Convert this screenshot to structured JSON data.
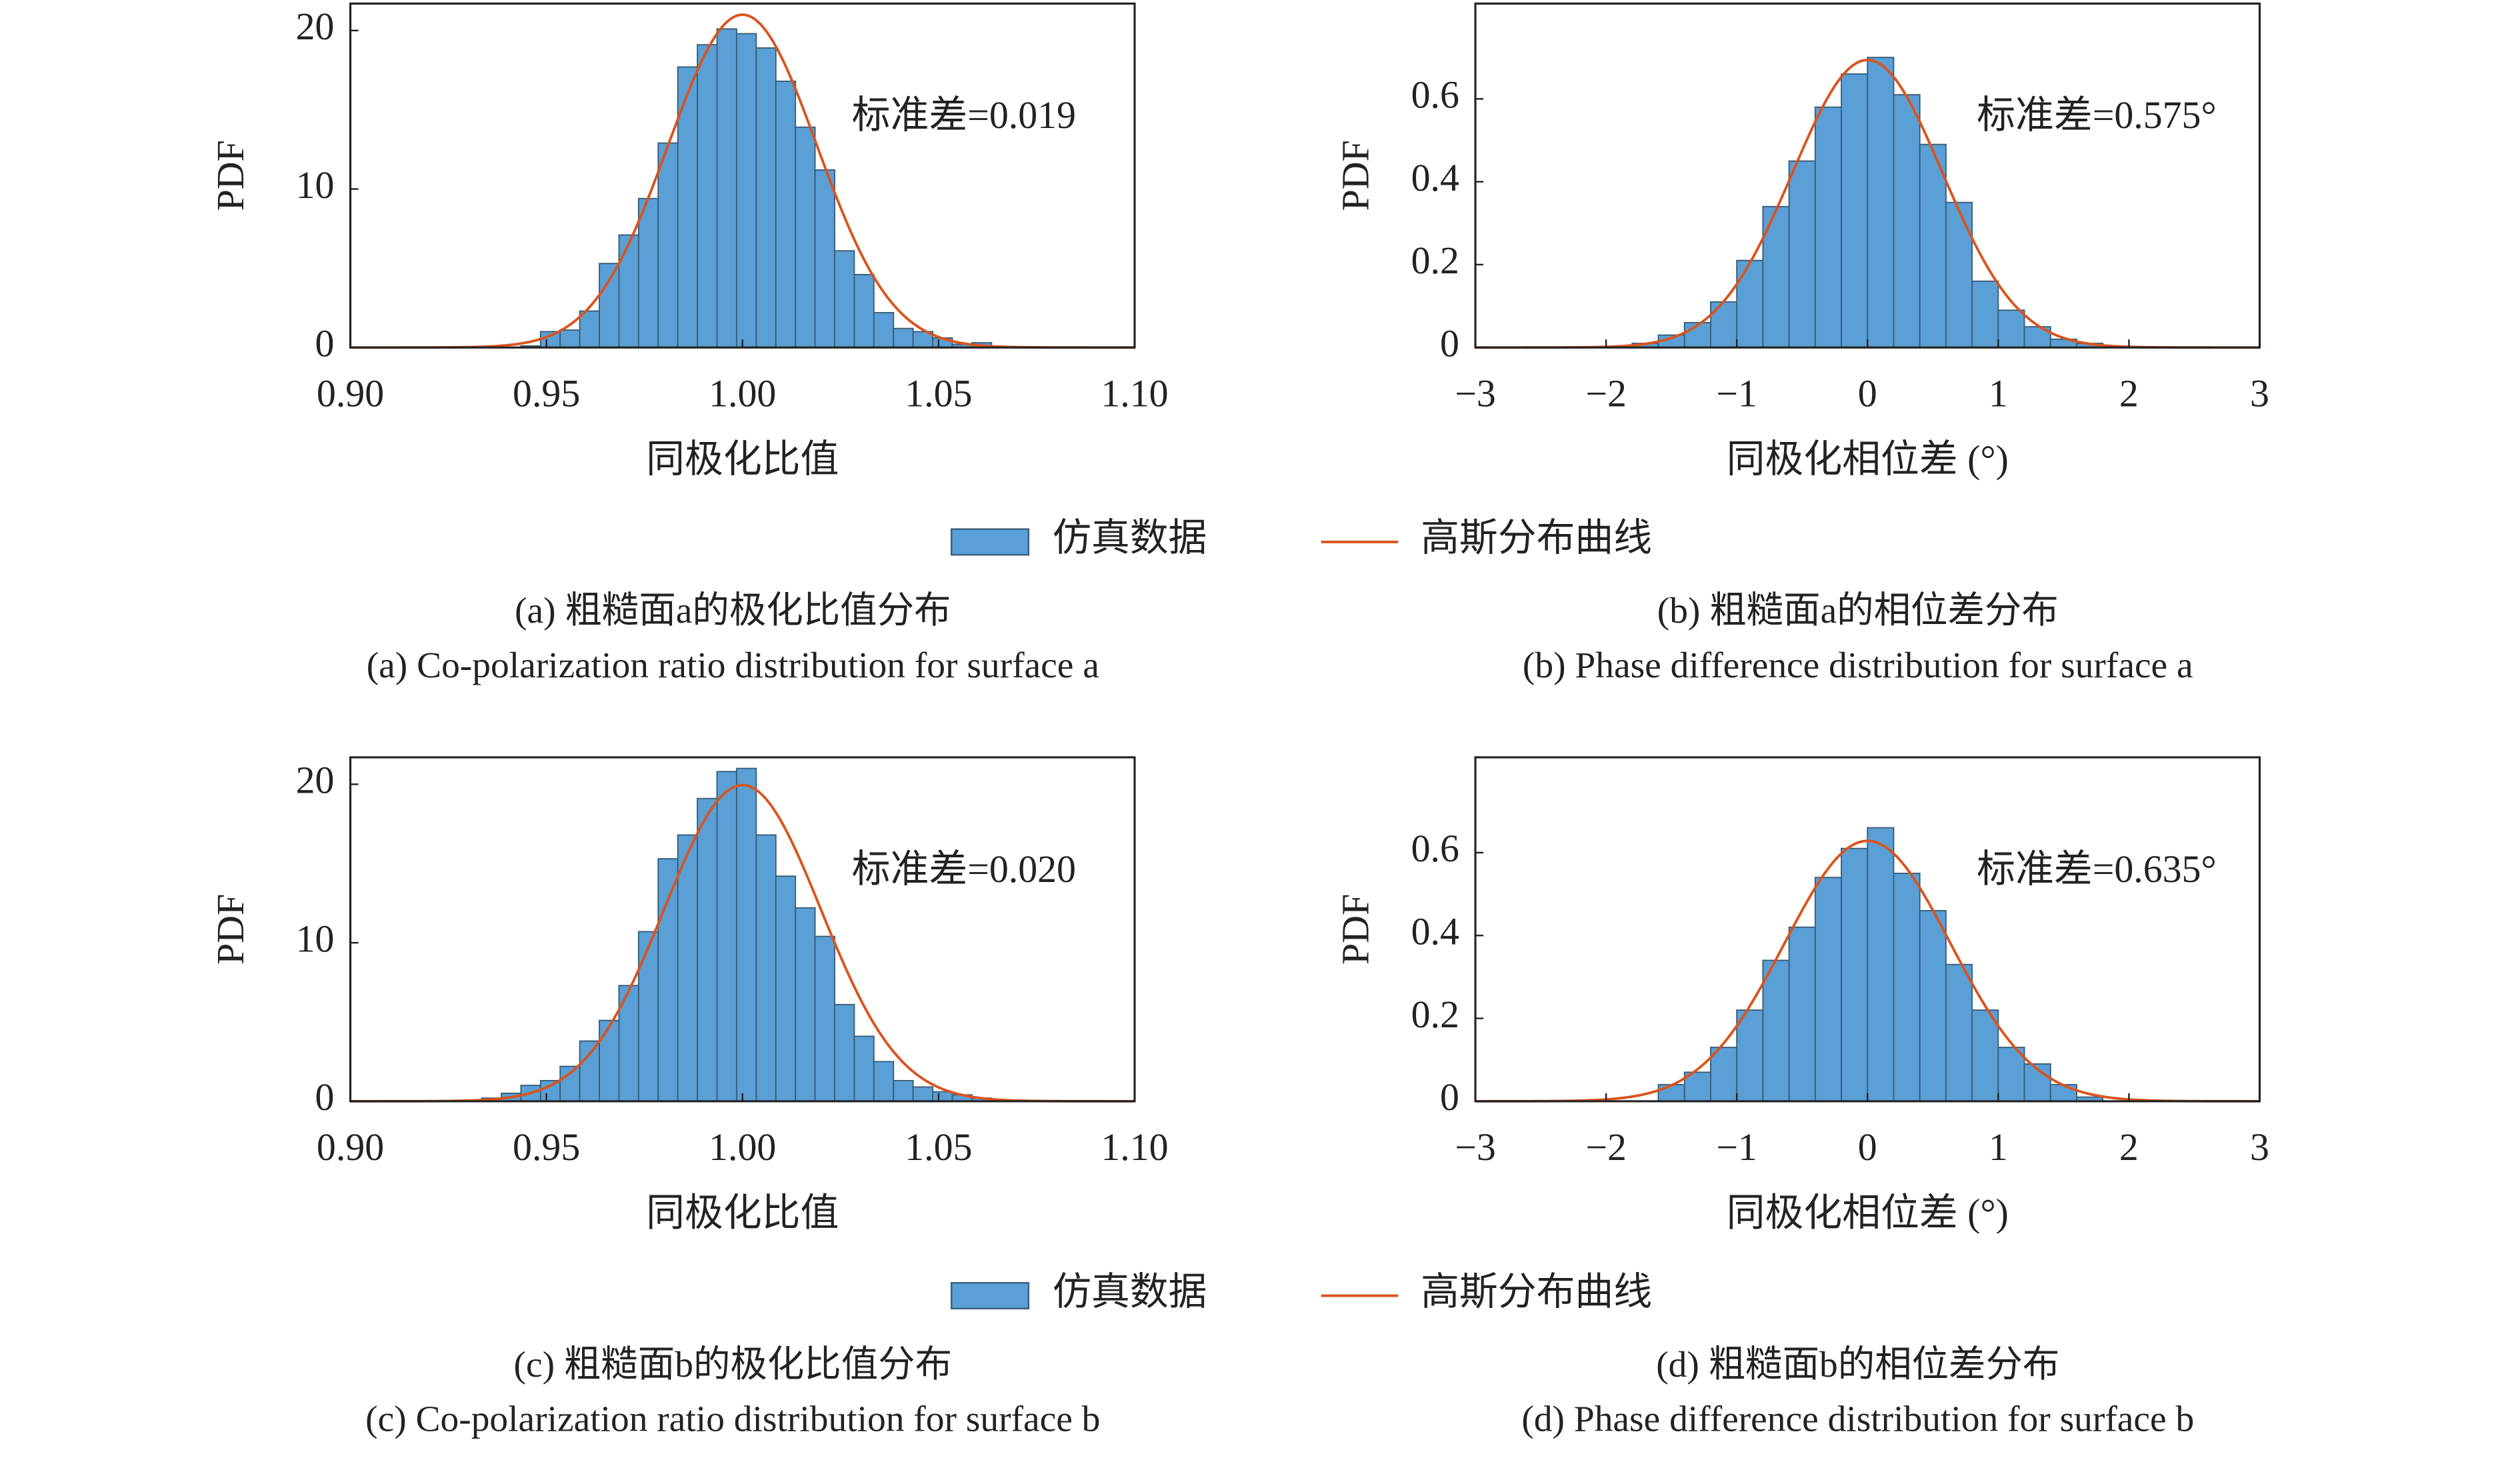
{
  "chart_data": [
    {
      "type": "histogram",
      "xlabel": "同极化比值",
      "ylabel": "PDF",
      "annotation": "标准差=0.019",
      "caption_cn": "(a) 粗糙面a的极化比值分布",
      "caption_en": "(a) Co-polarization ratio distribution for surface a",
      "xlim": [
        0.9,
        1.1
      ],
      "ylim": [
        0,
        21.7
      ],
      "xticks": [
        {
          "value": 0.9,
          "label": "0.90"
        },
        0.95,
        {
          "value": 1.0,
          "label": "1.00"
        },
        1.05,
        {
          "value": 1.1,
          "label": "1.10"
        }
      ],
      "yticks": [
        0,
        10,
        20
      ],
      "series": [
        {
          "name": "仿真数据",
          "color": "#5a9fd6",
          "bins": [
            0.9435,
            0.9485,
            0.9535,
            0.9585,
            0.9635,
            0.9685,
            0.9735,
            0.9785,
            0.9835,
            0.9885,
            0.9935,
            0.9985,
            1.0035,
            1.0085,
            1.0135,
            1.0185,
            1.0235,
            1.0285,
            1.0335,
            1.0385,
            1.0435,
            1.0485,
            1.0535,
            1.0585,
            1.0635
          ],
          "values": [
            0.1,
            1.0,
            1.1,
            2.3,
            5.3,
            7.1,
            9.4,
            12.9,
            17.7,
            19.1,
            20.1,
            19.8,
            18.9,
            16.8,
            13.9,
            11.2,
            6.1,
            4.6,
            2.2,
            1.2,
            1.0,
            0.6,
            0.2,
            0.3
          ]
        },
        {
          "name": "高斯分布曲线",
          "color": "#d9541e",
          "mean": 1.0,
          "sd": 0.019
        }
      ]
    },
    {
      "type": "histogram",
      "xlabel": "同极化相位差 (°)",
      "ylabel": "PDF",
      "annotation": "标准差=0.575°",
      "caption_cn": "(b) 粗糙面a的相位差分布",
      "caption_en": "(b) Phase difference distribution for surface a",
      "xlim": [
        -3,
        3
      ],
      "ylim": [
        0,
        0.83
      ],
      "xticks": [
        {
          "value": -3,
          "label": "−3"
        },
        {
          "value": -2,
          "label": "−2"
        },
        {
          "value": -1,
          "label": "−1"
        },
        0,
        1,
        2,
        3
      ],
      "yticks": [
        0,
        0.2,
        0.4,
        0.6
      ],
      "series": [
        {
          "color": "#5a9fd6",
          "bins": [
            -1.8,
            -1.6,
            -1.4,
            -1.2,
            -1.0,
            -0.8,
            -0.6,
            -0.4,
            -0.2,
            0,
            0.2,
            0.4,
            0.6,
            0.8,
            1.0,
            1.2,
            1.4,
            1.6,
            1.8
          ],
          "values": [
            0.01,
            0.03,
            0.06,
            0.11,
            0.21,
            0.34,
            0.45,
            0.58,
            0.66,
            0.7,
            0.61,
            0.49,
            0.35,
            0.16,
            0.09,
            0.05,
            0.02,
            0.01
          ]
        },
        {
          "color": "#d9541e",
          "mean": 0,
          "sd": 0.575
        }
      ]
    },
    {
      "type": "histogram",
      "xlabel": "同极化比值",
      "ylabel": "PDF",
      "annotation": "标准差=0.020",
      "caption_cn": "(c) 粗糙面b的极化比值分布",
      "caption_en": "(c) Co-polarization ratio distribution for surface b",
      "xlim": [
        0.9,
        1.1
      ],
      "ylim": [
        0,
        21.7
      ],
      "xticks": [
        {
          "value": 0.9,
          "label": "0.90"
        },
        0.95,
        {
          "value": 1.0,
          "label": "1.00"
        },
        1.05,
        {
          "value": 1.1,
          "label": "1.10"
        }
      ],
      "yticks": [
        0,
        10,
        20
      ],
      "series": [
        {
          "name": "仿真数据",
          "color": "#5a9fd6",
          "bins": [
            0.9335,
            0.9385,
            0.9435,
            0.9485,
            0.9535,
            0.9585,
            0.9635,
            0.9685,
            0.9735,
            0.9785,
            0.9835,
            0.9885,
            0.9935,
            0.9985,
            1.0035,
            1.0085,
            1.0135,
            1.0185,
            1.0235,
            1.0285,
            1.0335,
            1.0385,
            1.0435,
            1.0485,
            1.0535,
            1.0585,
            1.0635
          ],
          "values": [
            0.2,
            0.5,
            1.0,
            1.3,
            2.2,
            3.8,
            5.1,
            7.3,
            10.7,
            15.3,
            16.8,
            19.1,
            20.8,
            21.0,
            16.8,
            14.2,
            12.2,
            10.4,
            6.1,
            4.1,
            2.5,
            1.3,
            0.9,
            0.6,
            0.4,
            0.2
          ]
        },
        {
          "name": "高斯分布曲线",
          "color": "#d9541e",
          "mean": 1.0,
          "sd": 0.02
        }
      ]
    },
    {
      "type": "histogram",
      "xlabel": "同极化相位差 (°)",
      "ylabel": "PDF",
      "annotation": "标准差=0.635°",
      "caption_cn": "(d) 粗糙面b的相位差分布",
      "caption_en": "(d) Phase difference distribution for surface b",
      "xlim": [
        -3,
        3
      ],
      "ylim": [
        0,
        0.83
      ],
      "xticks": [
        {
          "value": -3,
          "label": "−3"
        },
        {
          "value": -2,
          "label": "−2"
        },
        {
          "value": -1,
          "label": "−1"
        },
        0,
        1,
        2,
        3
      ],
      "yticks": [
        0,
        0.2,
        0.4,
        0.6
      ],
      "series": [
        {
          "color": "#5a9fd6",
          "bins": [
            -1.6,
            -1.4,
            -1.2,
            -1.0,
            -0.8,
            -0.6,
            -0.4,
            -0.2,
            0,
            0.2,
            0.4,
            0.6,
            0.8,
            1.0,
            1.2,
            1.4,
            1.6,
            1.8
          ],
          "values": [
            0.04,
            0.07,
            0.13,
            0.22,
            0.34,
            0.42,
            0.54,
            0.61,
            0.66,
            0.55,
            0.46,
            0.33,
            0.22,
            0.13,
            0.09,
            0.04,
            0.01
          ]
        },
        {
          "color": "#d9541e",
          "mean": 0,
          "sd": 0.635
        }
      ]
    }
  ]
}
